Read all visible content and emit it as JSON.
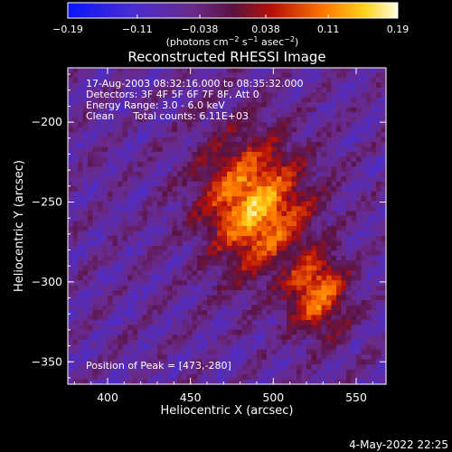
{
  "chart_data": {
    "type": "heatmap",
    "title": "Reconstructed RHESSI Image",
    "xlabel": "Heliocentric X (arcsec)",
    "ylabel": "Heliocentric Y (arcsec)",
    "xlim": [
      376,
      568
    ],
    "ylim": [
      -364,
      -166
    ],
    "xticks": [
      400,
      450,
      500,
      550
    ],
    "yticks": [
      -200,
      -250,
      -300,
      -350
    ],
    "colorbar": {
      "min": -0.19,
      "max": 0.19,
      "ticks": [
        "-0.19",
        "-0.11",
        "-0.038",
        "0.038",
        "0.11",
        "0.19"
      ],
      "units": "(photons cm^-2 s^-1 asec^-2)"
    },
    "annotations": [
      "17-Aug-2003 08:32:16.000 to 08:35:32.000",
      "Detectors: 3F 4F 5F 6F 7F 8F, Att 0",
      "Energy Range: 3.0 - 6.0 keV",
      "Clean      Total counts: 6.11E+03"
    ],
    "peak_label": "Position of Peak = [473,-280]",
    "peak": [
      473,
      -280
    ],
    "grid": false
  },
  "footer": {
    "date": "4-May-2022 22:25"
  },
  "colors": {
    "background": "#000000",
    "foreground": "#ffffff"
  }
}
